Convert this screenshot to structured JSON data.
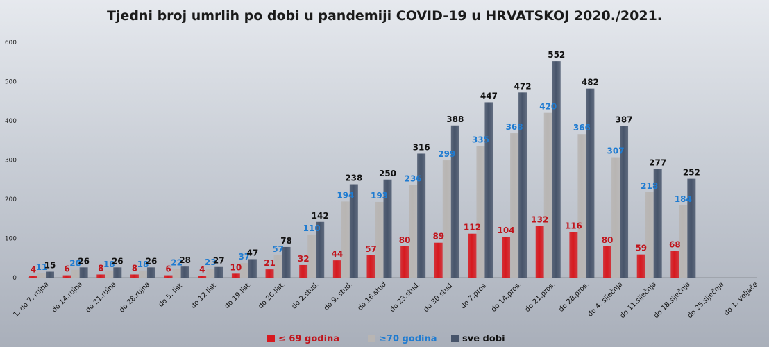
{
  "chart_data": {
    "type": "bar",
    "title": "Tjedni broj umrlih po dobi u pandemiji COVID-19 u HRVATSKOJ 2020./2021.",
    "xlabel": "",
    "ylabel": "",
    "ylim": [
      0,
      600
    ],
    "yticks": [
      0,
      100,
      200,
      300,
      400,
      500,
      600
    ],
    "grid": false,
    "legend_position": "bottom",
    "categories": [
      "1. do 7. rujna",
      "do 14.rujna",
      "do 21.rujna",
      "do 28.rujna",
      "do 5. list.",
      "do 12.list.",
      "do 19.list.",
      "do 26.list.",
      "do 2.stud.",
      "do 9. stud.",
      "do 16.stud",
      "do 23.stud.",
      "do 30 stud.",
      "do 7.pros.",
      "do 14.pros.",
      "do 21.pros.",
      "do 28.pros.",
      "do 4. siječnja",
      "do 11.siječnja",
      "do 18.siječnja",
      "do 25.siječnja",
      "do 1. veljače"
    ],
    "series": [
      {
        "name": "≤ 69 godina",
        "color": "#d7191f",
        "label_color": "#c0141b",
        "values": [
          4,
          6,
          8,
          8,
          6,
          4,
          10,
          21,
          32,
          44,
          57,
          80,
          89,
          112,
          104,
          132,
          116,
          80,
          59,
          68,
          null,
          null
        ]
      },
      {
        "name": "≥70 godina",
        "color": "#b8b5b3",
        "label_color": "#1e7bd1",
        "values": [
          11,
          20,
          18,
          18,
          22,
          23,
          37,
          57,
          110,
          194,
          193,
          236,
          299,
          335,
          368,
          420,
          366,
          307,
          218,
          184,
          null,
          null
        ]
      },
      {
        "name": "sve dobi",
        "color": "#47546a",
        "label_color": "#111111",
        "values": [
          15,
          26,
          26,
          26,
          28,
          27,
          47,
          78,
          142,
          238,
          250,
          316,
          388,
          447,
          472,
          552,
          482,
          387,
          277,
          252,
          null,
          null
        ]
      }
    ]
  }
}
